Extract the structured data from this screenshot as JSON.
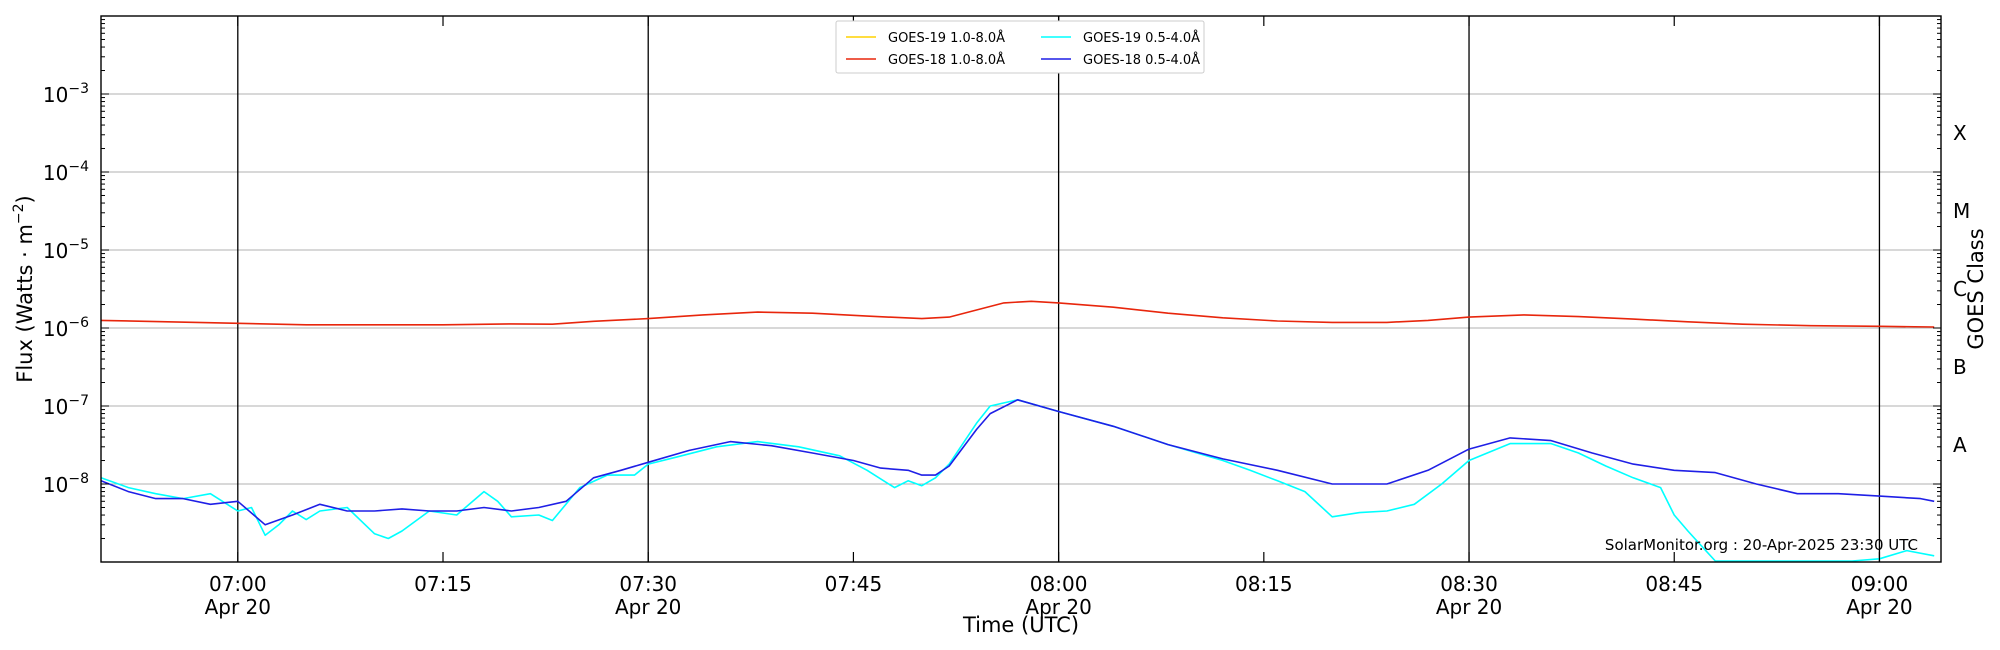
{
  "chart_data": {
    "type": "line",
    "xlabel": "Time (UTC)",
    "ylabel_main": "Flux (Watts · m",
    "ylabel_sup": "−2",
    "ylabel_close": ")",
    "y2label": "GOES Class",
    "y_scale": "log",
    "ylim": [
      1e-09,
      0.01
    ],
    "xlim": [
      "06:50",
      "09:04.5"
    ],
    "grid": "horizontal at decades",
    "legend_position": "top-center",
    "credit": "SolarMonitor.org : 20-Apr-2025 23:30 UTC",
    "x_ticks": [
      {
        "time": "07:00",
        "label": "07:00",
        "date": "Apr 20",
        "vline": true
      },
      {
        "time": "07:15",
        "label": "07:15",
        "date": "",
        "vline": false
      },
      {
        "time": "07:30",
        "label": "07:30",
        "date": "Apr 20",
        "vline": true
      },
      {
        "time": "07:45",
        "label": "07:45",
        "date": "",
        "vline": false
      },
      {
        "time": "08:00",
        "label": "08:00",
        "date": "Apr 20",
        "vline": true
      },
      {
        "time": "08:15",
        "label": "08:15",
        "date": "",
        "vline": false
      },
      {
        "time": "08:30",
        "label": "08:30",
        "date": "Apr 20",
        "vline": true
      },
      {
        "time": "08:45",
        "label": "08:45",
        "date": "",
        "vline": false
      },
      {
        "time": "09:00",
        "label": "09:00",
        "date": "Apr 20",
        "vline": true
      }
    ],
    "y_ticks": [
      {
        "exp": -8,
        "label": "10",
        "sup": "−8"
      },
      {
        "exp": -7,
        "label": "10",
        "sup": "−7"
      },
      {
        "exp": -6,
        "label": "10",
        "sup": "−6"
      },
      {
        "exp": -5,
        "label": "10",
        "sup": "−5"
      },
      {
        "exp": -4,
        "label": "10",
        "sup": "−4"
      },
      {
        "exp": -3,
        "label": "10",
        "sup": "−3"
      }
    ],
    "classes": [
      {
        "label": "A",
        "exp": -7.5
      },
      {
        "label": "B",
        "exp": -6.5
      },
      {
        "label": "C",
        "exp": -5.5
      },
      {
        "label": "M",
        "exp": -4.5
      },
      {
        "label": "X",
        "exp": -3.5
      }
    ],
    "series": [
      {
        "name": "GOES-19 1.0-8.0Å",
        "color": "#ffd200",
        "visible": false,
        "x": [],
        "y": []
      },
      {
        "name": "GOES-18 1.0-8.0Å",
        "color": "#e8260c",
        "x": [
          "06:50",
          "07:00",
          "07:05",
          "07:10",
          "07:15",
          "07:20",
          "07:23",
          "07:26",
          "07:30",
          "07:34",
          "07:38",
          "07:42",
          "07:46",
          "07:50",
          "07:52",
          "07:54",
          "07:56",
          "07:58",
          "08:00",
          "08:04",
          "08:08",
          "08:12",
          "08:16",
          "08:20",
          "08:24",
          "08:27",
          "08:30",
          "08:34",
          "08:38",
          "08:42",
          "08:46",
          "08:50",
          "08:55",
          "09:00",
          "09:04"
        ],
        "y": [
          1.25e-06,
          1.15e-06,
          1.1e-06,
          1.1e-06,
          1.1e-06,
          1.13e-06,
          1.12e-06,
          1.22e-06,
          1.32e-06,
          1.47e-06,
          1.6e-06,
          1.55e-06,
          1.42e-06,
          1.32e-06,
          1.38e-06,
          1.7e-06,
          2.1e-06,
          2.2e-06,
          2.1e-06,
          1.85e-06,
          1.55e-06,
          1.35e-06,
          1.23e-06,
          1.18e-06,
          1.18e-06,
          1.25e-06,
          1.38e-06,
          1.47e-06,
          1.4e-06,
          1.3e-06,
          1.2e-06,
          1.12e-06,
          1.07e-06,
          1.05e-06,
          1.03e-06
        ]
      },
      {
        "name": "GOES-19 0.5-4.0Å",
        "color": "#00ffff",
        "x": [
          "06:50",
          "06:52",
          "06:54",
          "06:56",
          "06:58",
          "07:00",
          "07:01",
          "07:02",
          "07:03",
          "07:04",
          "07:05",
          "07:06",
          "07:08",
          "07:10",
          "07:11",
          "07:12",
          "07:14",
          "07:16",
          "07:18",
          "07:19",
          "07:20",
          "07:22",
          "07:23",
          "07:25",
          "07:27",
          "07:29",
          "07:30",
          "07:32",
          "07:35",
          "07:38",
          "07:41",
          "07:44",
          "07:46",
          "07:48",
          "07:49",
          "07:50",
          "07:51",
          "07:52",
          "07:54",
          "07:55",
          "07:57",
          "08:00",
          "08:04",
          "08:08",
          "08:12",
          "08:14",
          "08:16",
          "08:18",
          "08:20",
          "08:22",
          "08:24",
          "08:26",
          "08:28",
          "08:30",
          "08:33",
          "08:36",
          "08:38",
          "08:40",
          "08:42",
          "08:44",
          "08:45",
          "08:46",
          "08:47",
          "08:48",
          "08:50",
          "08:52",
          "08:54",
          "08:56",
          "08:58",
          "09:00",
          "09:02",
          "09:04"
        ],
        "y": [
          1.2e-08,
          9e-09,
          7.5e-09,
          6.5e-09,
          7.5e-09,
          4.5e-09,
          5e-09,
          2.2e-09,
          3e-09,
          4.5e-09,
          3.5e-09,
          4.5e-09,
          5e-09,
          2.3e-09,
          2e-09,
          2.5e-09,
          4.5e-09,
          4e-09,
          8e-09,
          6e-09,
          3.8e-09,
          4e-09,
          3.4e-09,
          9e-09,
          1.3e-08,
          1.3e-08,
          1.8e-08,
          2.2e-08,
          3e-08,
          3.5e-08,
          3e-08,
          2.3e-08,
          1.5e-08,
          9e-09,
          1.1e-08,
          9.5e-09,
          1.2e-08,
          1.8e-08,
          6e-08,
          1e-07,
          1.2e-07,
          8.5e-08,
          5.5e-08,
          3.2e-08,
          2e-08,
          1.5e-08,
          1.1e-08,
          8e-09,
          3.8e-09,
          4.3e-09,
          4.5e-09,
          5.5e-09,
          1e-08,
          2e-08,
          3.3e-08,
          3.3e-08,
          2.5e-08,
          1.7e-08,
          1.2e-08,
          9e-09,
          4e-09,
          2.5e-09,
          1.6e-09,
          1e-09,
          8e-10,
          1e-09,
          8e-10,
          9e-10,
          8e-10,
          1.1e-09,
          1.4e-09,
          1.2e-09
        ]
      },
      {
        "name": "GOES-18 0.5-4.0Å",
        "color": "#1f1fe6",
        "x": [
          "06:50",
          "06:52",
          "06:54",
          "06:56",
          "06:58",
          "07:00",
          "07:02",
          "07:04",
          "07:06",
          "07:08",
          "07:10",
          "07:12",
          "07:14",
          "07:16",
          "07:18",
          "07:20",
          "07:22",
          "07:24",
          "07:26",
          "07:28",
          "07:30",
          "07:33",
          "07:36",
          "07:39",
          "07:42",
          "07:45",
          "07:47",
          "07:49",
          "07:50",
          "07:51",
          "07:52",
          "07:54",
          "07:55",
          "07:57",
          "08:00",
          "08:04",
          "08:08",
          "08:12",
          "08:16",
          "08:20",
          "08:24",
          "08:27",
          "08:30",
          "08:33",
          "08:36",
          "08:39",
          "08:42",
          "08:45",
          "08:48",
          "08:51",
          "08:54",
          "08:57",
          "09:00",
          "09:03",
          "09:04"
        ],
        "y": [
          1.1e-08,
          8e-09,
          6.5e-09,
          6.5e-09,
          5.5e-09,
          6e-09,
          3e-09,
          4e-09,
          5.5e-09,
          4.5e-09,
          4.5e-09,
          4.8e-09,
          4.5e-09,
          4.5e-09,
          5e-09,
          4.5e-09,
          5e-09,
          6e-09,
          1.2e-08,
          1.5e-08,
          1.9e-08,
          2.7e-08,
          3.5e-08,
          3.1e-08,
          2.5e-08,
          2e-08,
          1.6e-08,
          1.5e-08,
          1.3e-08,
          1.3e-08,
          1.7e-08,
          5e-08,
          8e-08,
          1.2e-07,
          8.5e-08,
          5.5e-08,
          3.2e-08,
          2.1e-08,
          1.5e-08,
          1e-08,
          1e-08,
          1.5e-08,
          2.8e-08,
          3.9e-08,
          3.6e-08,
          2.5e-08,
          1.8e-08,
          1.5e-08,
          1.4e-08,
          1e-08,
          7.5e-09,
          7.5e-09,
          7e-09,
          6.5e-09,
          6e-09
        ]
      }
    ]
  }
}
